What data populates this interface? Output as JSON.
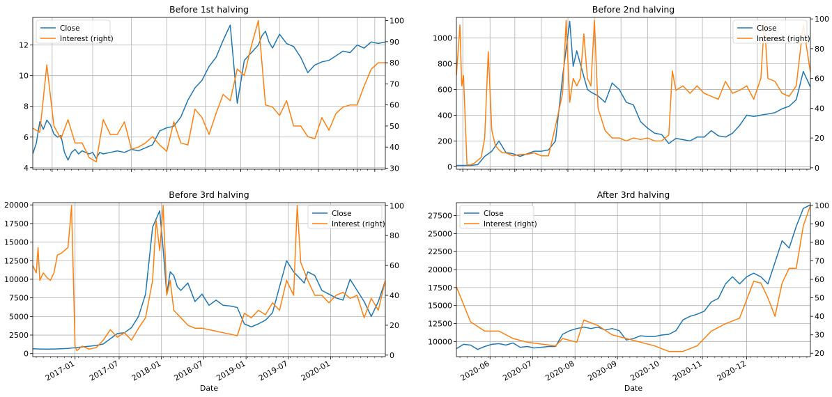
{
  "figure": {
    "xlabel_bottom": "Date"
  },
  "colors": {
    "close": "#1f77b4",
    "interest": "#ff7f0e",
    "grid": "#b0b0b0"
  },
  "chart_data": [
    {
      "type": "line",
      "title": "Before 1st halving",
      "ylim": [
        3.9,
        13.8
      ],
      "yticks": [
        "4",
        "6",
        "8",
        "10",
        "12"
      ],
      "y2lim": [
        29.5,
        101.5
      ],
      "y2ticks": [
        "30",
        "40",
        "50",
        "60",
        "70",
        "80",
        "90",
        "100"
      ],
      "legend": {
        "position": "upper left",
        "labels": [
          "Close",
          "Interest (right)"
        ]
      },
      "grid": true,
      "series": [
        {
          "name": "Close",
          "axis": "left",
          "x": [
            0,
            0.01,
            0.02,
            0.03,
            0.04,
            0.05,
            0.06,
            0.07,
            0.08,
            0.09,
            0.1,
            0.11,
            0.12,
            0.13,
            0.14,
            0.15,
            0.16,
            0.17,
            0.18,
            0.19,
            0.2,
            0.22,
            0.24,
            0.26,
            0.28,
            0.3,
            0.32,
            0.34,
            0.36,
            0.38,
            0.4,
            0.42,
            0.44,
            0.46,
            0.48,
            0.5,
            0.52,
            0.54,
            0.56,
            0.58,
            0.6,
            0.62,
            0.64,
            0.65,
            0.66,
            0.67,
            0.68,
            0.7,
            0.72,
            0.74,
            0.76,
            0.78,
            0.8,
            0.82,
            0.84,
            0.86,
            0.88,
            0.9,
            0.92,
            0.94,
            0.96,
            0.98,
            1.0
          ],
          "y": [
            4.9,
            5.6,
            7.0,
            6.5,
            7.1,
            6.8,
            6.2,
            6.0,
            6.1,
            5.0,
            4.5,
            5.0,
            5.2,
            4.9,
            5.1,
            5.0,
            4.9,
            5.0,
            4.6,
            5.0,
            4.9,
            5.0,
            5.1,
            5.0,
            5.2,
            5.1,
            5.3,
            5.5,
            6.4,
            6.6,
            6.7,
            7.3,
            8.4,
            9.2,
            9.7,
            10.6,
            11.2,
            12.3,
            13.3,
            8.2,
            11.0,
            11.5,
            12.0,
            12.6,
            12.9,
            12.2,
            11.8,
            12.7,
            12.1,
            11.9,
            11.2,
            10.2,
            10.7,
            10.9,
            11.0,
            11.3,
            11.6,
            11.5,
            12.0,
            11.8,
            12.2,
            12.1,
            12.2
          ]
        },
        {
          "name": "Interest (right)",
          "axis": "right",
          "x": [
            0,
            0.02,
            0.04,
            0.06,
            0.08,
            0.1,
            0.12,
            0.14,
            0.16,
            0.18,
            0.2,
            0.22,
            0.24,
            0.26,
            0.28,
            0.3,
            0.32,
            0.34,
            0.36,
            0.38,
            0.4,
            0.42,
            0.44,
            0.46,
            0.48,
            0.5,
            0.52,
            0.54,
            0.56,
            0.58,
            0.6,
            0.62,
            0.64,
            0.66,
            0.68,
            0.7,
            0.72,
            0.74,
            0.76,
            0.78,
            0.8,
            0.82,
            0.84,
            0.86,
            0.88,
            0.9,
            0.92,
            0.94,
            0.96,
            0.98,
            1.0
          ],
          "y": [
            49,
            47,
            79,
            50,
            44,
            53,
            42,
            42,
            35,
            33,
            53,
            46,
            46,
            52,
            39,
            40,
            42,
            45,
            41,
            38,
            52,
            42,
            41,
            58,
            54,
            46,
            56,
            65,
            62,
            77,
            74,
            88,
            100,
            60,
            59,
            55,
            62,
            50,
            50,
            45,
            44,
            54,
            48,
            56,
            59,
            60,
            60,
            69,
            77,
            80,
            80
          ]
        }
      ],
      "xticks": []
    },
    {
      "type": "line",
      "title": "Before 2nd halving",
      "ylim": [
        -20,
        1160
      ],
      "yticks": [
        "0",
        "200",
        "400",
        "600",
        "800",
        "1000"
      ],
      "y2lim": [
        -1,
        101
      ],
      "y2ticks": [
        "0",
        "20",
        "40",
        "60",
        "80",
        "100"
      ],
      "legend": {
        "position": "upper right",
        "labels": [
          "Close",
          "Interest (right)"
        ]
      },
      "grid": true,
      "series": [
        {
          "name": "Close",
          "axis": "left",
          "x": [
            0,
            0.02,
            0.04,
            0.06,
            0.08,
            0.1,
            0.12,
            0.14,
            0.16,
            0.18,
            0.2,
            0.22,
            0.24,
            0.26,
            0.28,
            0.3,
            0.32,
            0.33,
            0.34,
            0.35,
            0.36,
            0.37,
            0.38,
            0.4,
            0.42,
            0.44,
            0.46,
            0.48,
            0.5,
            0.52,
            0.54,
            0.56,
            0.58,
            0.6,
            0.62,
            0.64,
            0.66,
            0.68,
            0.7,
            0.72,
            0.74,
            0.76,
            0.78,
            0.8,
            0.82,
            0.84,
            0.86,
            0.88,
            0.9,
            0.92,
            0.94,
            0.96,
            0.98,
            1.0
          ],
          "y": [
            10,
            10,
            10,
            15,
            80,
            120,
            200,
            110,
            100,
            80,
            100,
            120,
            120,
            130,
            200,
            700,
            1130,
            780,
            900,
            800,
            700,
            600,
            580,
            550,
            500,
            650,
            600,
            500,
            480,
            350,
            300,
            260,
            250,
            180,
            220,
            210,
            200,
            230,
            230,
            280,
            240,
            230,
            260,
            320,
            400,
            390,
            400,
            410,
            420,
            450,
            470,
            520,
            740,
            620
          ]
        },
        {
          "name": "Interest (right)",
          "axis": "right",
          "x": [
            0,
            0.01,
            0.015,
            0.02,
            0.03,
            0.04,
            0.05,
            0.06,
            0.07,
            0.08,
            0.09,
            0.1,
            0.11,
            0.12,
            0.13,
            0.14,
            0.16,
            0.18,
            0.2,
            0.22,
            0.24,
            0.26,
            0.28,
            0.3,
            0.31,
            0.32,
            0.33,
            0.34,
            0.35,
            0.36,
            0.37,
            0.38,
            0.39,
            0.4,
            0.42,
            0.44,
            0.46,
            0.48,
            0.5,
            0.52,
            0.54,
            0.56,
            0.58,
            0.6,
            0.61,
            0.62,
            0.64,
            0.66,
            0.68,
            0.7,
            0.72,
            0.74,
            0.76,
            0.78,
            0.8,
            0.82,
            0.84,
            0.86,
            0.87,
            0.88,
            0.9,
            0.92,
            0.94,
            0.96,
            0.98,
            1.0
          ],
          "y": [
            62,
            96,
            55,
            62,
            2,
            2,
            3,
            5,
            7,
            20,
            78,
            25,
            15,
            12,
            10,
            10,
            8,
            9,
            9,
            10,
            8,
            8,
            28,
            50,
            99,
            44,
            60,
            55,
            60,
            90,
            60,
            55,
            99,
            40,
            25,
            20,
            20,
            18,
            20,
            19,
            20,
            18,
            18,
            22,
            65,
            52,
            55,
            50,
            55,
            50,
            48,
            46,
            58,
            50,
            52,
            55,
            46,
            60,
            98,
            60,
            58,
            50,
            48,
            55,
            96,
            64
          ]
        }
      ],
      "xticks": []
    },
    {
      "type": "line",
      "title": "Before 3rd halving",
      "ylim": [
        -400,
        20300
      ],
      "yticks": [
        "0",
        "2500",
        "5000",
        "7500",
        "10000",
        "12500",
        "15000",
        "17500",
        "20000"
      ],
      "y2lim": [
        -1,
        102
      ],
      "y2ticks": [
        "0",
        "20",
        "40",
        "60",
        "80",
        "100"
      ],
      "legend": {
        "position": "upper right",
        "labels": [
          "Close",
          "Interest (right)"
        ]
      },
      "grid": true,
      "xlabel": "Date",
      "xticks": [
        "2017-01",
        "2017-07",
        "2018-01",
        "2018-07",
        "2019-01",
        "2019-07",
        "2020-01"
      ],
      "series": [
        {
          "name": "Close",
          "axis": "left",
          "x": [
            0,
            0.02,
            0.04,
            0.06,
            0.08,
            0.1,
            0.12,
            0.14,
            0.16,
            0.18,
            0.2,
            0.22,
            0.24,
            0.26,
            0.28,
            0.3,
            0.32,
            0.34,
            0.36,
            0.37,
            0.38,
            0.39,
            0.4,
            0.41,
            0.42,
            0.44,
            0.46,
            0.48,
            0.5,
            0.52,
            0.54,
            0.56,
            0.58,
            0.6,
            0.62,
            0.64,
            0.66,
            0.68,
            0.7,
            0.72,
            0.74,
            0.76,
            0.77,
            0.78,
            0.8,
            0.82,
            0.84,
            0.86,
            0.88,
            0.9,
            0.92,
            0.94,
            0.96,
            0.98,
            1.0
          ],
          "y": [
            650,
            620,
            600,
            620,
            650,
            700,
            800,
            900,
            1000,
            1100,
            1300,
            2000,
            2700,
            2800,
            3500,
            5000,
            8000,
            17000,
            19200,
            14000,
            8000,
            11000,
            10500,
            9000,
            8500,
            9500,
            7000,
            8000,
            6500,
            7200,
            6500,
            6400,
            6200,
            4000,
            3600,
            4000,
            4500,
            5500,
            9000,
            12500,
            11000,
            10000,
            9500,
            11000,
            10500,
            8500,
            8000,
            7500,
            7200,
            10000,
            8500,
            7000,
            5000,
            7000,
            9800
          ]
        },
        {
          "name": "Interest (right)",
          "axis": "right",
          "x": [
            0,
            0.01,
            0.015,
            0.02,
            0.03,
            0.04,
            0.05,
            0.06,
            0.07,
            0.08,
            0.09,
            0.1,
            0.11,
            0.12,
            0.125,
            0.13,
            0.14,
            0.16,
            0.18,
            0.2,
            0.22,
            0.24,
            0.26,
            0.28,
            0.3,
            0.32,
            0.34,
            0.35,
            0.36,
            0.37,
            0.38,
            0.39,
            0.4,
            0.42,
            0.44,
            0.46,
            0.48,
            0.5,
            0.52,
            0.54,
            0.56,
            0.58,
            0.6,
            0.62,
            0.64,
            0.66,
            0.68,
            0.7,
            0.72,
            0.74,
            0.75,
            0.76,
            0.78,
            0.8,
            0.82,
            0.84,
            0.86,
            0.88,
            0.9,
            0.92,
            0.94,
            0.96,
            0.98,
            1.0
          ],
          "y": [
            60,
            55,
            72,
            50,
            55,
            52,
            50,
            55,
            67,
            68,
            70,
            72,
            100,
            6,
            3,
            4,
            6,
            4,
            5,
            10,
            17,
            12,
            15,
            10,
            18,
            25,
            50,
            90,
            70,
            100,
            40,
            50,
            30,
            25,
            20,
            18,
            18,
            17,
            16,
            15,
            14,
            13,
            28,
            25,
            30,
            27,
            35,
            30,
            50,
            40,
            100,
            62,
            50,
            40,
            40,
            35,
            40,
            42,
            38,
            40,
            25,
            38,
            30,
            50
          ]
        }
      ]
    },
    {
      "type": "line",
      "title": "After 3rd halving",
      "ylim": [
        7900,
        29300
      ],
      "yticks": [
        "10000",
        "12500",
        "15000",
        "17500",
        "20000",
        "22500",
        "25000",
        "27500"
      ],
      "y2lim": [
        18.2,
        101.5
      ],
      "y2ticks": [
        "20",
        "30",
        "40",
        "50",
        "60",
        "70",
        "80",
        "90",
        "100"
      ],
      "legend": {
        "position": "upper left",
        "labels": [
          "Close",
          "Interest (right)"
        ]
      },
      "grid": true,
      "xlabel": "Date",
      "xticks": [
        "2020-06",
        "2020-07",
        "2020-08",
        "2020-09",
        "2020-10",
        "2020-11",
        "2020-12"
      ],
      "series": [
        {
          "name": "Close",
          "axis": "left",
          "x": [
            0,
            0.02,
            0.04,
            0.06,
            0.08,
            0.1,
            0.12,
            0.14,
            0.16,
            0.18,
            0.2,
            0.22,
            0.24,
            0.26,
            0.28,
            0.3,
            0.32,
            0.34,
            0.36,
            0.38,
            0.4,
            0.42,
            0.44,
            0.46,
            0.48,
            0.5,
            0.52,
            0.54,
            0.56,
            0.58,
            0.6,
            0.62,
            0.64,
            0.66,
            0.68,
            0.7,
            0.72,
            0.74,
            0.76,
            0.78,
            0.8,
            0.82,
            0.84,
            0.86,
            0.88,
            0.9,
            0.92,
            0.94,
            0.96,
            0.98,
            1.0
          ],
          "y": [
            9000,
            9600,
            9500,
            8900,
            9300,
            9600,
            9700,
            9500,
            9800,
            9200,
            9300,
            9100,
            9200,
            9300,
            9300,
            11000,
            11500,
            11800,
            12000,
            11800,
            12000,
            11600,
            11800,
            11500,
            10200,
            10400,
            10800,
            10700,
            10700,
            10900,
            11000,
            11500,
            13000,
            13500,
            13800,
            14200,
            15500,
            16000,
            18000,
            19000,
            18000,
            19000,
            19500,
            19000,
            18000,
            21000,
            24000,
            23000,
            26000,
            28500,
            29000
          ]
        },
        {
          "name": "Interest (right)",
          "axis": "right",
          "x": [
            0,
            0.04,
            0.08,
            0.12,
            0.16,
            0.2,
            0.24,
            0.28,
            0.3,
            0.34,
            0.36,
            0.4,
            0.44,
            0.48,
            0.52,
            0.56,
            0.6,
            0.64,
            0.68,
            0.72,
            0.76,
            0.8,
            0.84,
            0.86,
            0.88,
            0.9,
            0.92,
            0.94,
            0.96,
            0.98,
            1.0
          ],
          "y": [
            56,
            37,
            32,
            32,
            28,
            26,
            25,
            24,
            28,
            26,
            38,
            35,
            30,
            28,
            26,
            24,
            21,
            21,
            24,
            32,
            36,
            39,
            59,
            58,
            50,
            40,
            58,
            66,
            66,
            89,
            100
          ]
        }
      ]
    }
  ]
}
